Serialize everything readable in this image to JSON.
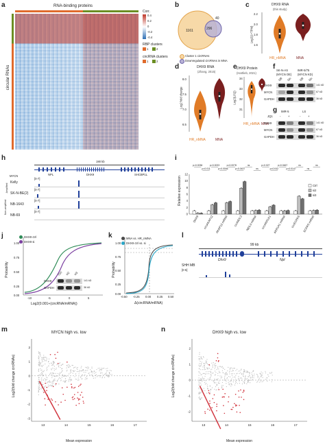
{
  "panels": {
    "a": {
      "letter": "a",
      "header": "RNA-binding proteins",
      "row_label": "circular RNAs",
      "legend": {
        "corr_title": "Corr.",
        "corr_ticks": [
          "0.4",
          "0.2",
          "0",
          "-0.2",
          "-0.4"
        ],
        "rbp_title": "RBP clusters",
        "rbp_items": [
          "1",
          "2"
        ],
        "circ_title": "circRNA clusters",
        "circ_items": [
          "1",
          "2"
        ]
      },
      "colors": {
        "pos": "#c0392b",
        "neg": "#2e6fb5",
        "cluster1": "#e06b2c",
        "cluster2": "#6b8e23"
      }
    },
    "b": {
      "letter": "b",
      "left_count": "1161",
      "overlap_count": "296",
      "right_count": "40",
      "legend": [
        "Cluster 1 circRNAs",
        "Downregulated circRNAs in MNA"
      ]
    },
    "c": {
      "letter": "c",
      "title": "DHX9 RNA",
      "subtitle": "(this study)",
      "ylabel": "Log2(1+TPM)",
      "yticks": [
        "1.6",
        "1.8",
        "2.0",
        "2.2"
      ],
      "groups": [
        "HR_nMNA",
        "MNA"
      ]
    },
    "d": {
      "letter": "d",
      "title": "DHX9 RNA",
      "subtitle": "(Zhang, 2015)",
      "ylabel": "Log2 fold change",
      "yticks": [
        "6.5",
        "7.0",
        "7.5",
        "8.0"
      ],
      "groups": [
        "HR_nMNA",
        "MNA"
      ]
    },
    "e": {
      "letter": "e",
      "title": "DHX9 Protein",
      "subtitle": "(Hartlieb, 2021)",
      "ylabel": "Log2(LFQ)",
      "yticks": [
        "31",
        "32",
        "33",
        "34"
      ],
      "groups": [
        "HR_nMNA",
        "MNA"
      ]
    },
    "f": {
      "letter": "f",
      "cell_lines": [
        "SK-N-AS",
        "IMR-5/75"
      ],
      "conditions": [
        "(MYCN OE)",
        "(MYCN KD)"
      ],
      "lane_labels": [
        "Off",
        "On",
        "Off",
        "On"
      ],
      "rows": [
        "DHX9",
        "MYCN",
        "GAPDH"
      ],
      "sizes": [
        "141 kD",
        "67 kD",
        "36 kD"
      ]
    },
    "g": {
      "letter": "g",
      "cell_lines": [
        "IMR-5",
        "LS"
      ],
      "treatment": "JQ1",
      "lanes": [
        "-",
        "+",
        "-",
        "+"
      ],
      "rows": [
        "DHX9",
        "MYCN",
        "GAPDH"
      ],
      "sizes": [
        "141 kD",
        "67 kD",
        "36 kD"
      ]
    },
    "h": {
      "letter": "h",
      "scale": "190 kb",
      "track_header": "MYCN",
      "genes": [
        "NPL",
        "DHX9",
        "SHCBP1L"
      ],
      "group_amp": "Amplified",
      "group_nonamp": "Non-amplified",
      "tracks": [
        {
          "name": "Kelly",
          "range": "[0-7]"
        },
        {
          "name": "SK-N-BE(2)",
          "range": "[0-7]"
        },
        {
          "name": "NB-1643",
          "range": "[0-7]"
        },
        {
          "name": "NB-69",
          "range": "[0-7]"
        }
      ]
    },
    "i": {
      "letter": "i",
      "ylabel": "Relative expression",
      "yticks": [
        "0",
        "2",
        "4",
        "6",
        "8",
        "10",
        "12"
      ],
      "legend": [
        "Ctrl",
        "si2",
        "si3"
      ],
      "categories": [
        "DHX9",
        "circAKAP12",
        "AKAP12 mRNA",
        "circNEIL3",
        "NEIL3 mRNA",
        "circAKR1A1",
        "AKR1A1 mRNA",
        "circECPAS",
        "ECPAS mRNA"
      ],
      "pvalues": [
        "p=0.0036",
        "p=0.011",
        "p=0.0023",
        "p=0.0046",
        "p=0.0078",
        "p=0.0437",
        "ns",
        "ns",
        "p=0.027",
        "p=0.042",
        "p=0.0467",
        "p=0.0147",
        "ns",
        "ns",
        "ns"
      ],
      "chart_data": {
        "type": "bar",
        "categories": [
          "DHX9",
          "circAKAP12",
          "AKAP12 mRNA",
          "circNEIL3",
          "NEIL3 mRNA",
          "circAKR1A1",
          "AKR1A1 mRNA",
          "circECPAS",
          "ECPAS mRNA"
        ],
        "series": [
          {
            "name": "Ctrl",
            "values": [
              1,
              1,
              1,
              1,
              1,
              1,
              1,
              1,
              1
            ]
          },
          {
            "name": "si2",
            "values": [
              0.3,
              2.8,
              3.4,
              7.8,
              1.1,
              2.2,
              1.0,
              5.4,
              1.1
            ]
          },
          {
            "name": "si3",
            "values": [
              0.25,
              3.4,
              3.8,
              9.8,
              1.2,
              2.7,
              1.1,
              4.6,
              1.2
            ]
          }
        ],
        "ylim": [
          0,
          12
        ]
      }
    },
    "j": {
      "letter": "j",
      "legend": [
        "DHX9 ctrl",
        "DHX9 si"
      ],
      "xlabel": "Log2(0.001+(circRNA/mRNA))",
      "ylabel": "Probability",
      "xticks": [
        "-10",
        "-5",
        "0",
        "5"
      ],
      "yticks": [
        "0.00",
        "0.25",
        "0.50",
        "0.75",
        "1.00"
      ],
      "inset_labels": [
        "Ctrl",
        "si2",
        "si3"
      ],
      "inset_rows": [
        "DHX9",
        "GAPDH"
      ],
      "inset_sizes": [
        "141 kD",
        "36 kD"
      ]
    },
    "k": {
      "letter": "k",
      "legend": [
        "MNA vs. HR_nMNA",
        "DHX9 ctrl vs. si"
      ],
      "xlabel": "Δ(circRNA/mRNA)",
      "ylabel": "Probability",
      "xticks": [
        "-0.50",
        "-0.25",
        "0.00",
        "0.25",
        "0.50"
      ],
      "yticks": [
        "0.00",
        "0.25",
        "0.50",
        "0.75",
        "1.00"
      ]
    },
    "l": {
      "letter": "l",
      "scale": "99 kb",
      "genes": [
        "Dhx9",
        "Npl"
      ],
      "track": "SHH MB",
      "range": "[0-5]"
    },
    "m": {
      "letter": "m",
      "title": "MYCN high vs. low",
      "xlabel": "Mean expression",
      "ylabel": "Log2(fold change circRNAs)",
      "xticks": [
        "13",
        "14",
        "15",
        "16",
        "17"
      ],
      "yticks": [
        "-3",
        "-2",
        "-1",
        "0",
        "1",
        "2"
      ]
    },
    "n": {
      "letter": "n",
      "title": "DHX9 high vs. low",
      "xlabel": "Mean expression",
      "ylabel": "Log2(fold change circRNAs)",
      "xticks": [
        "13",
        "14",
        "15",
        "16",
        "17"
      ],
      "yticks": [
        "-2",
        "-1",
        "0",
        "1",
        "2"
      ]
    }
  }
}
